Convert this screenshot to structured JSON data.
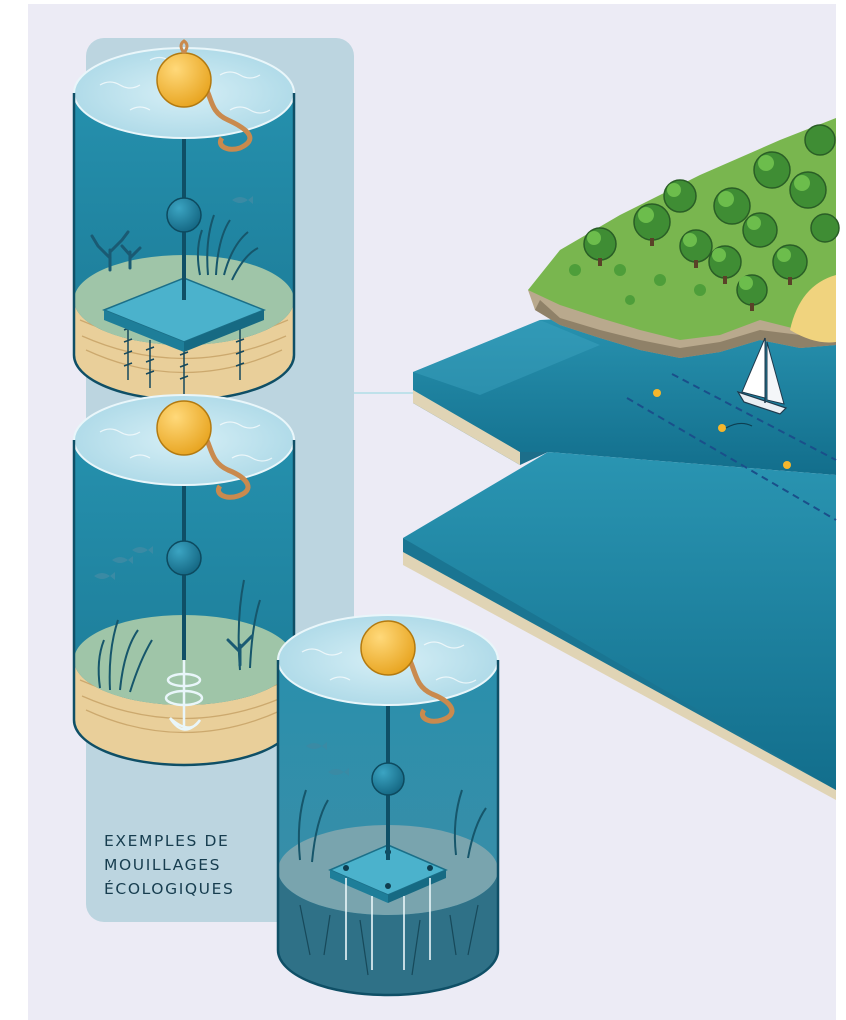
{
  "caption": {
    "lines": [
      "EXEMPLES DE",
      "MOUILLAGES",
      "ÉCOLOGIQUES"
    ]
  },
  "colors": {
    "background": "#ecebf5",
    "panel": "#bcd5e0",
    "water_deep": "#1b7c98",
    "water_surface": "#bde3ee",
    "buoy": "#f5b62c",
    "sediment": "#e9cf9a",
    "rope": "#c98a4e",
    "caption_text": "#173d4f",
    "tree_green": "#5caa42",
    "sand": "#f0d37e"
  },
  "moorings": [
    {
      "name": "mooring-on-screw-piles",
      "icons": [
        "buoy-icon",
        "float-icon",
        "anchor-plate-icon",
        "screw-pile-icon",
        "seagrass-icon",
        "coral-icon"
      ]
    },
    {
      "name": "mooring-on-helix-anchor",
      "icons": [
        "buoy-icon",
        "float-icon",
        "helix-anchor-icon",
        "fish-icon",
        "seagrass-icon"
      ]
    },
    {
      "name": "mooring-on-rock-plate",
      "icons": [
        "buoy-icon",
        "float-icon",
        "bolted-plate-icon",
        "rock-anchor-icon",
        "fish-icon",
        "seagrass-icon"
      ]
    }
  ]
}
